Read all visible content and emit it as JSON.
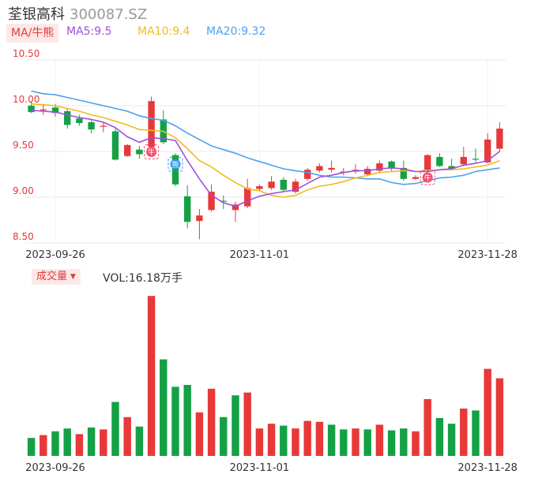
{
  "header": {
    "name": "荃银高科",
    "code": "300087.SZ"
  },
  "ma_bar": {
    "badge": "MA/牛熊",
    "ma5": "MA5:9.5",
    "ma10": "MA10:9.4",
    "ma20": "MA20:9.32"
  },
  "volume_bar": {
    "badge": "成交量",
    "label": "VOL:16.18万手"
  },
  "colors": {
    "up": "#e83838",
    "down": "#14a145",
    "ma5": "#a04ee0",
    "ma10": "#f2bb1d",
    "ma20": "#4aa3ee"
  },
  "chart_data": [
    {
      "type": "candlestick",
      "ylim": [
        8.5,
        10.5
      ],
      "yticks": [
        "10.50",
        "10.00",
        "9.50",
        "9.00",
        "8.50"
      ],
      "xticks": [
        {
          "index": 2,
          "label": "2023-09-26"
        },
        {
          "index": 19,
          "label": "2023-11-01"
        },
        {
          "index": 38,
          "label": "2023-11-28"
        }
      ],
      "candles": [
        {
          "o": 10.0,
          "c": 9.93,
          "h": 10.05,
          "l": 9.92
        },
        {
          "o": 9.95,
          "c": 9.96,
          "h": 10.02,
          "l": 9.9
        },
        {
          "o": 9.98,
          "c": 9.92,
          "h": 10.02,
          "l": 9.88
        },
        {
          "o": 9.94,
          "c": 9.79,
          "h": 9.97,
          "l": 9.75
        },
        {
          "o": 9.86,
          "c": 9.81,
          "h": 9.9,
          "l": 9.78
        },
        {
          "o": 9.82,
          "c": 9.74,
          "h": 9.84,
          "l": 9.7
        },
        {
          "o": 9.77,
          "c": 9.78,
          "h": 9.82,
          "l": 9.71
        },
        {
          "o": 9.72,
          "c": 9.41,
          "h": 9.75,
          "l": 9.4
        },
        {
          "o": 9.45,
          "c": 9.57,
          "h": 9.58,
          "l": 9.44
        },
        {
          "o": 9.52,
          "c": 9.47,
          "h": 9.56,
          "l": 9.42
        },
        {
          "o": 9.55,
          "c": 10.05,
          "h": 10.1,
          "l": 9.53
        },
        {
          "o": 9.85,
          "c": 9.6,
          "h": 9.95,
          "l": 9.58
        },
        {
          "o": 9.46,
          "c": 9.14,
          "h": 9.48,
          "l": 9.12
        },
        {
          "o": 9.01,
          "c": 8.73,
          "h": 9.13,
          "l": 8.66
        },
        {
          "o": 8.74,
          "c": 8.8,
          "h": 8.87,
          "l": 8.54
        },
        {
          "o": 8.86,
          "c": 9.06,
          "h": 9.14,
          "l": 8.84
        },
        {
          "o": 8.96,
          "c": 8.95,
          "h": 9.02,
          "l": 8.87
        },
        {
          "o": 8.86,
          "c": 8.92,
          "h": 8.95,
          "l": 8.73
        },
        {
          "o": 8.9,
          "c": 9.1,
          "h": 9.2,
          "l": 8.88
        },
        {
          "o": 9.09,
          "c": 9.12,
          "h": 9.14,
          "l": 9.07
        },
        {
          "o": 9.1,
          "c": 9.17,
          "h": 9.23,
          "l": 9.08
        },
        {
          "o": 9.19,
          "c": 9.08,
          "h": 9.22,
          "l": 9.06
        },
        {
          "o": 9.06,
          "c": 9.17,
          "h": 9.2,
          "l": 9.04
        },
        {
          "o": 9.2,
          "c": 9.3,
          "h": 9.32,
          "l": 9.18
        },
        {
          "o": 9.29,
          "c": 9.34,
          "h": 9.37,
          "l": 9.27
        },
        {
          "o": 9.3,
          "c": 9.32,
          "h": 9.4,
          "l": 9.27
        },
        {
          "o": 9.27,
          "c": 9.28,
          "h": 9.32,
          "l": 9.24
        },
        {
          "o": 9.28,
          "c": 9.3,
          "h": 9.36,
          "l": 9.26
        },
        {
          "o": 9.25,
          "c": 9.31,
          "h": 9.34,
          "l": 9.23
        },
        {
          "o": 9.29,
          "c": 9.37,
          "h": 9.4,
          "l": 9.27
        },
        {
          "o": 9.39,
          "c": 9.32,
          "h": 9.4,
          "l": 9.28
        },
        {
          "o": 9.32,
          "c": 9.2,
          "h": 9.4,
          "l": 9.18
        },
        {
          "o": 9.2,
          "c": 9.22,
          "h": 9.24,
          "l": 9.19
        },
        {
          "o": 9.3,
          "c": 9.46,
          "h": 9.47,
          "l": 9.25
        },
        {
          "o": 9.44,
          "c": 9.34,
          "h": 9.48,
          "l": 9.33
        },
        {
          "o": 9.34,
          "c": 9.31,
          "h": 9.42,
          "l": 9.3
        },
        {
          "o": 9.36,
          "c": 9.44,
          "h": 9.55,
          "l": 9.34
        },
        {
          "o": 9.42,
          "c": 9.41,
          "h": 9.53,
          "l": 9.38
        },
        {
          "o": 9.38,
          "c": 9.63,
          "h": 9.7,
          "l": 9.37
        },
        {
          "o": 9.53,
          "c": 9.75,
          "h": 9.82,
          "l": 9.5
        }
      ],
      "ma5": [
        9.95,
        9.94,
        9.93,
        9.9,
        9.87,
        9.85,
        9.82,
        9.76,
        9.66,
        9.6,
        9.65,
        9.64,
        9.62,
        9.4,
        9.2,
        9.02,
        8.94,
        8.9,
        8.96,
        9.01,
        9.04,
        9.06,
        9.08,
        9.15,
        9.22,
        9.24,
        9.27,
        9.29,
        9.29,
        9.31,
        9.32,
        9.31,
        9.28,
        9.28,
        9.3,
        9.31,
        9.35,
        9.37,
        9.4,
        9.5
      ],
      "ma10": [
        10.02,
        10.01,
        10.0,
        9.97,
        9.94,
        9.9,
        9.87,
        9.83,
        9.79,
        9.74,
        9.73,
        9.72,
        9.65,
        9.53,
        9.4,
        9.33,
        9.24,
        9.16,
        9.09,
        9.07,
        9.02,
        9.0,
        9.02,
        9.08,
        9.12,
        9.14,
        9.17,
        9.21,
        9.24,
        9.27,
        9.28,
        9.29,
        9.28,
        9.29,
        9.3,
        9.3,
        9.31,
        9.33,
        9.35,
        9.4
      ],
      "ma20": [
        10.16,
        10.13,
        10.12,
        10.09,
        10.06,
        10.03,
        10.0,
        9.97,
        9.94,
        9.89,
        9.86,
        9.84,
        9.78,
        9.7,
        9.63,
        9.56,
        9.52,
        9.48,
        9.43,
        9.39,
        9.35,
        9.31,
        9.29,
        9.27,
        9.24,
        9.22,
        9.22,
        9.21,
        9.2,
        9.2,
        9.16,
        9.14,
        9.15,
        9.18,
        9.21,
        9.22,
        9.24,
        9.28,
        9.3,
        9.32
      ],
      "annotations": [
        {
          "index": 10,
          "text": "牛",
          "kind": "bull"
        },
        {
          "index": 12,
          "text": "熊",
          "kind": "bear"
        },
        {
          "index": 33,
          "text": "牛",
          "kind": "bull"
        }
      ]
    },
    {
      "type": "bar",
      "name": "成交量",
      "ylim": [
        0,
        16.5
      ],
      "values": [
        {
          "v": 1.9,
          "up": false
        },
        {
          "v": 2.2,
          "up": true
        },
        {
          "v": 2.6,
          "up": false
        },
        {
          "v": 2.9,
          "up": false
        },
        {
          "v": 2.3,
          "up": true
        },
        {
          "v": 3.0,
          "up": false
        },
        {
          "v": 2.8,
          "up": true
        },
        {
          "v": 5.7,
          "up": false
        },
        {
          "v": 4.1,
          "up": true
        },
        {
          "v": 3.1,
          "up": false
        },
        {
          "v": 16.9,
          "up": true
        },
        {
          "v": 10.2,
          "up": false
        },
        {
          "v": 7.3,
          "up": false
        },
        {
          "v": 7.5,
          "up": false
        },
        {
          "v": 4.6,
          "up": true
        },
        {
          "v": 7.1,
          "up": true
        },
        {
          "v": 4.1,
          "up": false
        },
        {
          "v": 6.4,
          "up": false
        },
        {
          "v": 6.7,
          "up": true
        },
        {
          "v": 2.9,
          "up": true
        },
        {
          "v": 3.4,
          "up": true
        },
        {
          "v": 3.2,
          "up": false
        },
        {
          "v": 2.9,
          "up": true
        },
        {
          "v": 3.7,
          "up": true
        },
        {
          "v": 3.6,
          "up": true
        },
        {
          "v": 3.3,
          "up": false
        },
        {
          "v": 2.8,
          "up": false
        },
        {
          "v": 2.9,
          "up": true
        },
        {
          "v": 2.8,
          "up": false
        },
        {
          "v": 3.3,
          "up": true
        },
        {
          "v": 2.7,
          "up": false
        },
        {
          "v": 2.9,
          "up": false
        },
        {
          "v": 2.6,
          "up": true
        },
        {
          "v": 6.0,
          "up": true
        },
        {
          "v": 4.0,
          "up": false
        },
        {
          "v": 3.4,
          "up": false
        },
        {
          "v": 5.0,
          "up": true
        },
        {
          "v": 4.8,
          "up": false
        },
        {
          "v": 9.2,
          "up": true
        },
        {
          "v": 8.2,
          "up": true
        }
      ],
      "xticks": [
        {
          "index": 2,
          "label": "2023-09-26"
        },
        {
          "index": 19,
          "label": "2023-11-01"
        },
        {
          "index": 38,
          "label": "2023-11-28"
        }
      ]
    }
  ]
}
